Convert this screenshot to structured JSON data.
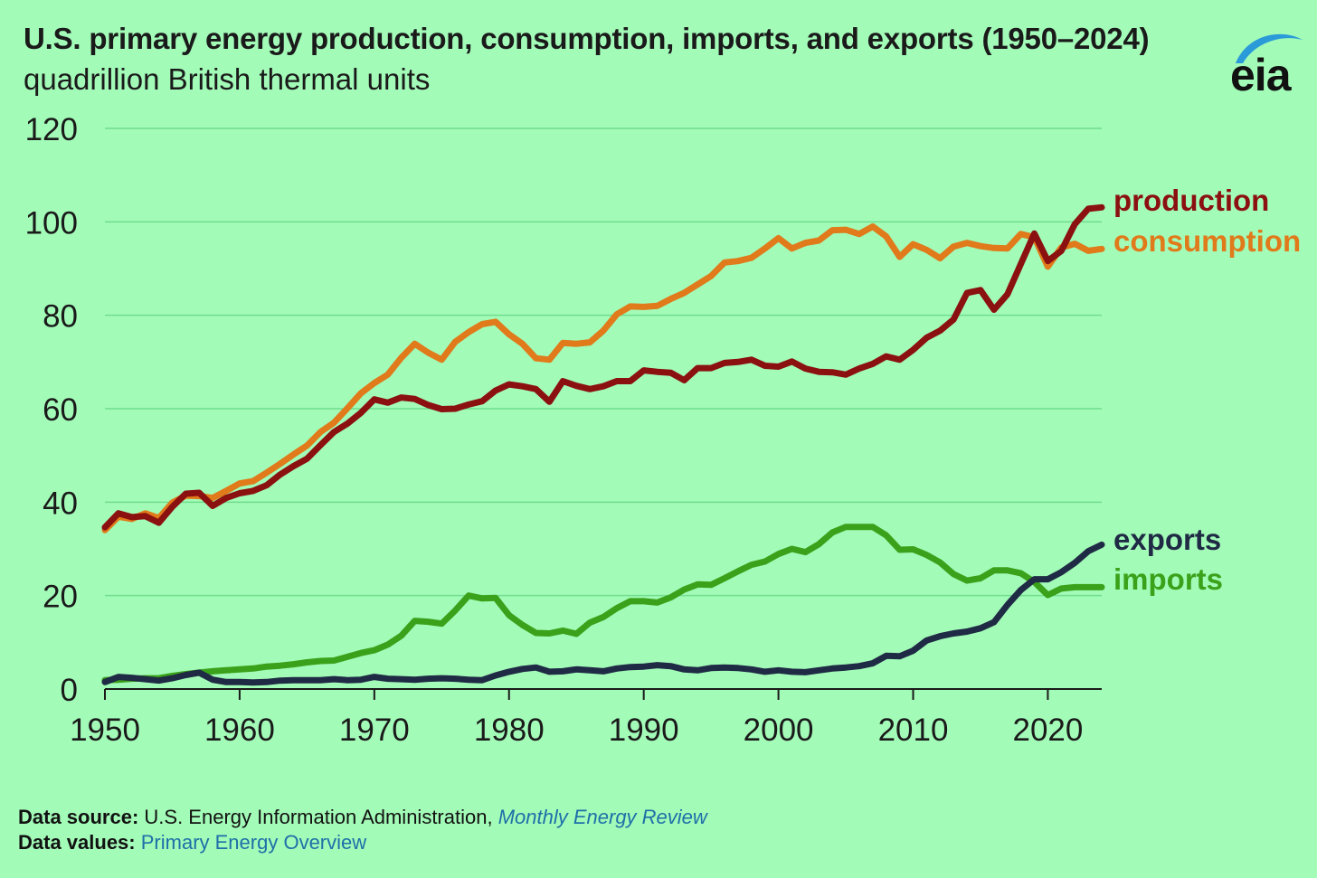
{
  "header": {
    "title": "U.S. primary energy production, consumption, imports, and exports (1950–2024)",
    "subtitle": "quadrillion British thermal units",
    "logo_text": "eia"
  },
  "footer": {
    "source_label": "Data source:",
    "source_text": "U.S. Energy Information Administration,",
    "source_link": "Monthly Energy Review",
    "values_label": "Data values:",
    "values_link": "Primary Energy Overview"
  },
  "colors": {
    "background": "#a3fbb8",
    "production": "#8b1010",
    "consumption": "#e07a1a",
    "imports": "#3aa21a",
    "exports": "#1f2a44",
    "gridline": "#6fdc8c"
  },
  "chart_data": {
    "type": "line",
    "title": "U.S. primary energy production, consumption, imports, and exports (1950–2024)",
    "subtitle": "quadrillion British thermal units",
    "xlabel": "",
    "ylabel": "",
    "xlim": [
      1950,
      2024
    ],
    "ylim": [
      0,
      120
    ],
    "x_ticks": [
      1950,
      1960,
      1970,
      1980,
      1990,
      2000,
      2010,
      2020
    ],
    "y_ticks": [
      0,
      20,
      40,
      60,
      80,
      100,
      120
    ],
    "grid": "horizontal",
    "legend_placement": "right end-of-line labels",
    "series": [
      {
        "name": "production",
        "color": "#8b1010",
        "points": [
          [
            1950,
            34.6
          ],
          [
            1951,
            37.6
          ],
          [
            1952,
            36.8
          ],
          [
            1953,
            37.0
          ],
          [
            1954,
            35.6
          ],
          [
            1955,
            39.0
          ],
          [
            1956,
            41.8
          ],
          [
            1957,
            42.0
          ],
          [
            1958,
            39.2
          ],
          [
            1959,
            40.9
          ],
          [
            1960,
            41.9
          ],
          [
            1961,
            42.4
          ],
          [
            1962,
            43.6
          ],
          [
            1963,
            45.9
          ],
          [
            1964,
            47.7
          ],
          [
            1965,
            49.3
          ],
          [
            1966,
            52.2
          ],
          [
            1967,
            55.0
          ],
          [
            1968,
            56.8
          ],
          [
            1969,
            59.1
          ],
          [
            1970,
            62.0
          ],
          [
            1971,
            61.3
          ],
          [
            1972,
            62.4
          ],
          [
            1973,
            62.1
          ],
          [
            1974,
            60.8
          ],
          [
            1975,
            59.9
          ],
          [
            1976,
            60.0
          ],
          [
            1977,
            60.9
          ],
          [
            1978,
            61.6
          ],
          [
            1979,
            63.9
          ],
          [
            1980,
            65.2
          ],
          [
            1981,
            64.8
          ],
          [
            1982,
            64.2
          ],
          [
            1983,
            61.5
          ],
          [
            1984,
            65.9
          ],
          [
            1985,
            64.9
          ],
          [
            1986,
            64.2
          ],
          [
            1987,
            64.8
          ],
          [
            1988,
            65.9
          ],
          [
            1989,
            65.9
          ],
          [
            1990,
            68.2
          ],
          [
            1991,
            67.9
          ],
          [
            1992,
            67.7
          ],
          [
            1993,
            66.1
          ],
          [
            1994,
            68.7
          ],
          [
            1995,
            68.7
          ],
          [
            1996,
            69.8
          ],
          [
            1997,
            70.0
          ],
          [
            1998,
            70.5
          ],
          [
            1999,
            69.2
          ],
          [
            2000,
            69.0
          ],
          [
            2001,
            70.1
          ],
          [
            2002,
            68.6
          ],
          [
            2003,
            67.9
          ],
          [
            2004,
            67.8
          ],
          [
            2005,
            67.3
          ],
          [
            2006,
            68.6
          ],
          [
            2007,
            69.6
          ],
          [
            2008,
            71.2
          ],
          [
            2009,
            70.5
          ],
          [
            2010,
            72.6
          ],
          [
            2011,
            75.2
          ],
          [
            2012,
            76.7
          ],
          [
            2013,
            79.1
          ],
          [
            2014,
            84.8
          ],
          [
            2015,
            85.4
          ],
          [
            2016,
            81.2
          ],
          [
            2017,
            84.5
          ],
          [
            2018,
            91.0
          ],
          [
            2019,
            97.5
          ],
          [
            2020,
            91.6
          ],
          [
            2021,
            93.8
          ],
          [
            2022,
            99.5
          ],
          [
            2023,
            102.8
          ],
          [
            2024,
            103.1
          ]
        ]
      },
      {
        "name": "consumption",
        "color": "#e07a1a",
        "points": [
          [
            1950,
            34.0
          ],
          [
            1951,
            36.9
          ],
          [
            1952,
            36.4
          ],
          [
            1953,
            37.6
          ],
          [
            1954,
            36.6
          ],
          [
            1955,
            39.9
          ],
          [
            1956,
            41.4
          ],
          [
            1957,
            41.3
          ],
          [
            1958,
            40.9
          ],
          [
            1959,
            42.4
          ],
          [
            1960,
            44.0
          ],
          [
            1961,
            44.5
          ],
          [
            1962,
            46.3
          ],
          [
            1963,
            48.2
          ],
          [
            1964,
            50.2
          ],
          [
            1965,
            52.1
          ],
          [
            1966,
            55.0
          ],
          [
            1967,
            57.0
          ],
          [
            1968,
            60.1
          ],
          [
            1969,
            63.3
          ],
          [
            1970,
            65.5
          ],
          [
            1971,
            67.3
          ],
          [
            1972,
            70.9
          ],
          [
            1973,
            73.9
          ],
          [
            1974,
            72.0
          ],
          [
            1975,
            70.5
          ],
          [
            1976,
            74.3
          ],
          [
            1977,
            76.4
          ],
          [
            1978,
            78.1
          ],
          [
            1979,
            78.6
          ],
          [
            1980,
            75.9
          ],
          [
            1981,
            73.9
          ],
          [
            1982,
            70.8
          ],
          [
            1983,
            70.5
          ],
          [
            1984,
            74.1
          ],
          [
            1985,
            73.9
          ],
          [
            1986,
            74.2
          ],
          [
            1987,
            76.7
          ],
          [
            1988,
            80.2
          ],
          [
            1989,
            81.9
          ],
          [
            1990,
            81.8
          ],
          [
            1991,
            82.0
          ],
          [
            1992,
            83.5
          ],
          [
            1993,
            84.8
          ],
          [
            1994,
            86.6
          ],
          [
            1995,
            88.4
          ],
          [
            1996,
            91.3
          ],
          [
            1997,
            91.6
          ],
          [
            1998,
            92.3
          ],
          [
            1999,
            94.3
          ],
          [
            2000,
            96.5
          ],
          [
            2001,
            94.3
          ],
          [
            2002,
            95.5
          ],
          [
            2003,
            96.0
          ],
          [
            2004,
            98.2
          ],
          [
            2005,
            98.3
          ],
          [
            2006,
            97.4
          ],
          [
            2007,
            99.0
          ],
          [
            2008,
            96.9
          ],
          [
            2009,
            92.5
          ],
          [
            2010,
            95.2
          ],
          [
            2011,
            94.0
          ],
          [
            2012,
            92.2
          ],
          [
            2013,
            94.7
          ],
          [
            2014,
            95.5
          ],
          [
            2015,
            94.8
          ],
          [
            2016,
            94.4
          ],
          [
            2017,
            94.3
          ],
          [
            2018,
            97.4
          ],
          [
            2019,
            96.7
          ],
          [
            2020,
            90.4
          ],
          [
            2021,
            94.5
          ],
          [
            2022,
            95.3
          ],
          [
            2023,
            93.8
          ],
          [
            2024,
            94.2
          ]
        ]
      },
      {
        "name": "imports",
        "color": "#3aa21a",
        "points": [
          [
            1950,
            1.9
          ],
          [
            1951,
            2.0
          ],
          [
            1952,
            2.2
          ],
          [
            1953,
            2.3
          ],
          [
            1954,
            2.3
          ],
          [
            1955,
            2.8
          ],
          [
            1956,
            3.2
          ],
          [
            1957,
            3.5
          ],
          [
            1958,
            3.8
          ],
          [
            1959,
            4.0
          ],
          [
            1960,
            4.2
          ],
          [
            1961,
            4.4
          ],
          [
            1962,
            4.8
          ],
          [
            1963,
            5.0
          ],
          [
            1964,
            5.3
          ],
          [
            1965,
            5.7
          ],
          [
            1966,
            6.0
          ],
          [
            1967,
            6.1
          ],
          [
            1968,
            6.9
          ],
          [
            1969,
            7.7
          ],
          [
            1970,
            8.3
          ],
          [
            1971,
            9.5
          ],
          [
            1972,
            11.4
          ],
          [
            1973,
            14.6
          ],
          [
            1974,
            14.4
          ],
          [
            1975,
            14.0
          ],
          [
            1976,
            16.8
          ],
          [
            1977,
            20.0
          ],
          [
            1978,
            19.4
          ],
          [
            1979,
            19.5
          ],
          [
            1980,
            15.8
          ],
          [
            1981,
            13.7
          ],
          [
            1982,
            12.0
          ],
          [
            1983,
            11.9
          ],
          [
            1984,
            12.5
          ],
          [
            1985,
            11.8
          ],
          [
            1986,
            14.2
          ],
          [
            1987,
            15.4
          ],
          [
            1988,
            17.3
          ],
          [
            1989,
            18.8
          ],
          [
            1990,
            18.8
          ],
          [
            1991,
            18.5
          ],
          [
            1992,
            19.6
          ],
          [
            1993,
            21.3
          ],
          [
            1994,
            22.4
          ],
          [
            1995,
            22.3
          ],
          [
            1996,
            23.7
          ],
          [
            1997,
            25.2
          ],
          [
            1998,
            26.6
          ],
          [
            1999,
            27.3
          ],
          [
            2000,
            28.9
          ],
          [
            2001,
            30.0
          ],
          [
            2002,
            29.3
          ],
          [
            2003,
            31.0
          ],
          [
            2004,
            33.5
          ],
          [
            2005,
            34.7
          ],
          [
            2006,
            34.7
          ],
          [
            2007,
            34.7
          ],
          [
            2008,
            32.9
          ],
          [
            2009,
            29.8
          ],
          [
            2010,
            29.9
          ],
          [
            2011,
            28.7
          ],
          [
            2012,
            27.1
          ],
          [
            2013,
            24.6
          ],
          [
            2014,
            23.2
          ],
          [
            2015,
            23.7
          ],
          [
            2016,
            25.4
          ],
          [
            2017,
            25.4
          ],
          [
            2018,
            24.8
          ],
          [
            2019,
            22.9
          ],
          [
            2020,
            20.1
          ],
          [
            2021,
            21.5
          ],
          [
            2022,
            21.8
          ],
          [
            2023,
            21.8
          ],
          [
            2024,
            21.8
          ]
        ]
      },
      {
        "name": "exports",
        "color": "#1f2a44",
        "points": [
          [
            1950,
            1.5
          ],
          [
            1951,
            2.6
          ],
          [
            1952,
            2.4
          ],
          [
            1953,
            2.1
          ],
          [
            1954,
            1.8
          ],
          [
            1955,
            2.3
          ],
          [
            1956,
            3.0
          ],
          [
            1957,
            3.5
          ],
          [
            1958,
            2.0
          ],
          [
            1959,
            1.5
          ],
          [
            1960,
            1.5
          ],
          [
            1961,
            1.4
          ],
          [
            1962,
            1.5
          ],
          [
            1963,
            1.8
          ],
          [
            1964,
            1.9
          ],
          [
            1965,
            1.9
          ],
          [
            1966,
            1.9
          ],
          [
            1967,
            2.1
          ],
          [
            1968,
            1.9
          ],
          [
            1969,
            2.0
          ],
          [
            1970,
            2.6
          ],
          [
            1971,
            2.2
          ],
          [
            1972,
            2.1
          ],
          [
            1973,
            2.0
          ],
          [
            1974,
            2.2
          ],
          [
            1975,
            2.3
          ],
          [
            1976,
            2.2
          ],
          [
            1977,
            2.0
          ],
          [
            1978,
            1.9
          ],
          [
            1979,
            2.9
          ],
          [
            1980,
            3.7
          ],
          [
            1981,
            4.3
          ],
          [
            1982,
            4.6
          ],
          [
            1983,
            3.7
          ],
          [
            1984,
            3.8
          ],
          [
            1985,
            4.2
          ],
          [
            1986,
            4.0
          ],
          [
            1987,
            3.8
          ],
          [
            1988,
            4.4
          ],
          [
            1989,
            4.7
          ],
          [
            1990,
            4.8
          ],
          [
            1991,
            5.1
          ],
          [
            1992,
            4.9
          ],
          [
            1993,
            4.2
          ],
          [
            1994,
            4.0
          ],
          [
            1995,
            4.5
          ],
          [
            1996,
            4.6
          ],
          [
            1997,
            4.5
          ],
          [
            1998,
            4.2
          ],
          [
            1999,
            3.7
          ],
          [
            2000,
            4.0
          ],
          [
            2001,
            3.7
          ],
          [
            2002,
            3.6
          ],
          [
            2003,
            4.0
          ],
          [
            2004,
            4.4
          ],
          [
            2005,
            4.6
          ],
          [
            2006,
            4.9
          ],
          [
            2007,
            5.5
          ],
          [
            2008,
            7.1
          ],
          [
            2009,
            7.0
          ],
          [
            2010,
            8.2
          ],
          [
            2011,
            10.4
          ],
          [
            2012,
            11.3
          ],
          [
            2013,
            11.9
          ],
          [
            2014,
            12.3
          ],
          [
            2015,
            13.0
          ],
          [
            2016,
            14.3
          ],
          [
            2017,
            18.0
          ],
          [
            2018,
            21.2
          ],
          [
            2019,
            23.5
          ],
          [
            2020,
            23.5
          ],
          [
            2021,
            25.0
          ],
          [
            2022,
            27.0
          ],
          [
            2023,
            29.5
          ],
          [
            2024,
            30.9
          ]
        ]
      }
    ]
  }
}
